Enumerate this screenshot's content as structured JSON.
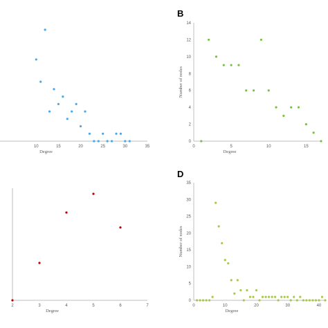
{
  "chart_data": [
    {
      "panel": "",
      "type": "scatter",
      "color": "#4aa8e8",
      "xlabel": "Degree",
      "ylabel": "",
      "xlim": [
        0,
        35
      ],
      "ylim": [
        0,
        15
      ],
      "xticks": [
        "10",
        "15",
        "20",
        "25",
        "30",
        "35"
      ],
      "x": [
        10,
        11,
        12,
        13,
        14,
        15,
        16,
        17,
        18,
        19,
        20,
        21,
        22,
        23,
        24,
        25,
        26,
        27,
        28,
        29,
        30,
        31
      ],
      "y": [
        11,
        8,
        15,
        4,
        7,
        5,
        6,
        3,
        4,
        5,
        2,
        4,
        1,
        0,
        0,
        1,
        0,
        0,
        1,
        1,
        0,
        0
      ]
    },
    {
      "panel": "B",
      "type": "scatter",
      "color": "#7ac143",
      "xlabel": "Degree",
      "ylabel": "Number of nodes",
      "xlim": [
        0,
        17
      ],
      "ylim": [
        0,
        14
      ],
      "xticks": [
        "0",
        "5",
        "10",
        "15"
      ],
      "yticks": [
        "0",
        "2",
        "4",
        "6",
        "8",
        "10",
        "12",
        "14"
      ],
      "x": [
        1,
        2,
        3,
        4,
        5,
        6,
        7,
        8,
        9,
        10,
        11,
        12,
        13,
        14,
        15,
        16,
        17
      ],
      "y": [
        0,
        12,
        10,
        9,
        9,
        9,
        6,
        6,
        12,
        6,
        4,
        3,
        4,
        4,
        2,
        1,
        0
      ]
    },
    {
      "panel": "",
      "type": "scatter",
      "color": "#c00000",
      "xlabel": "Degree",
      "ylabel": "",
      "xlim": [
        2,
        7
      ],
      "ylim": [
        0,
        6
      ],
      "xticks": [
        "2",
        "3",
        "4",
        "5",
        "6",
        "7"
      ],
      "x": [
        2,
        3,
        4,
        5,
        6
      ],
      "y": [
        0,
        2,
        4.7,
        5.7,
        3.9
      ]
    },
    {
      "panel": "D",
      "type": "scatter",
      "color": "#a8c84a",
      "xlabel": "Degree",
      "ylabel": "Number of nodes",
      "xlim": [
        0,
        42
      ],
      "ylim": [
        0,
        35
      ],
      "xticks": [
        "0",
        "10",
        "20",
        "30",
        "40"
      ],
      "yticks": [
        "0",
        "5",
        "10",
        "15",
        "20",
        "25",
        "30",
        "35"
      ],
      "x": [
        1,
        2,
        3,
        4,
        5,
        6,
        7,
        8,
        9,
        10,
        11,
        12,
        13,
        14,
        15,
        16,
        17,
        18,
        19,
        20,
        21,
        22,
        23,
        24,
        25,
        26,
        27,
        28,
        29,
        30,
        31,
        32,
        33,
        34,
        35,
        36,
        37,
        38,
        39,
        40,
        41,
        42
      ],
      "y": [
        0,
        0,
        0,
        0,
        0,
        1,
        29,
        22,
        17,
        12,
        11,
        6,
        2,
        6,
        3,
        0,
        3,
        1,
        1,
        3,
        0,
        1,
        1,
        1,
        1,
        1,
        0,
        1,
        1,
        1,
        0,
        1,
        0,
        1,
        0,
        0,
        0,
        0,
        0,
        0,
        1,
        0
      ]
    }
  ]
}
